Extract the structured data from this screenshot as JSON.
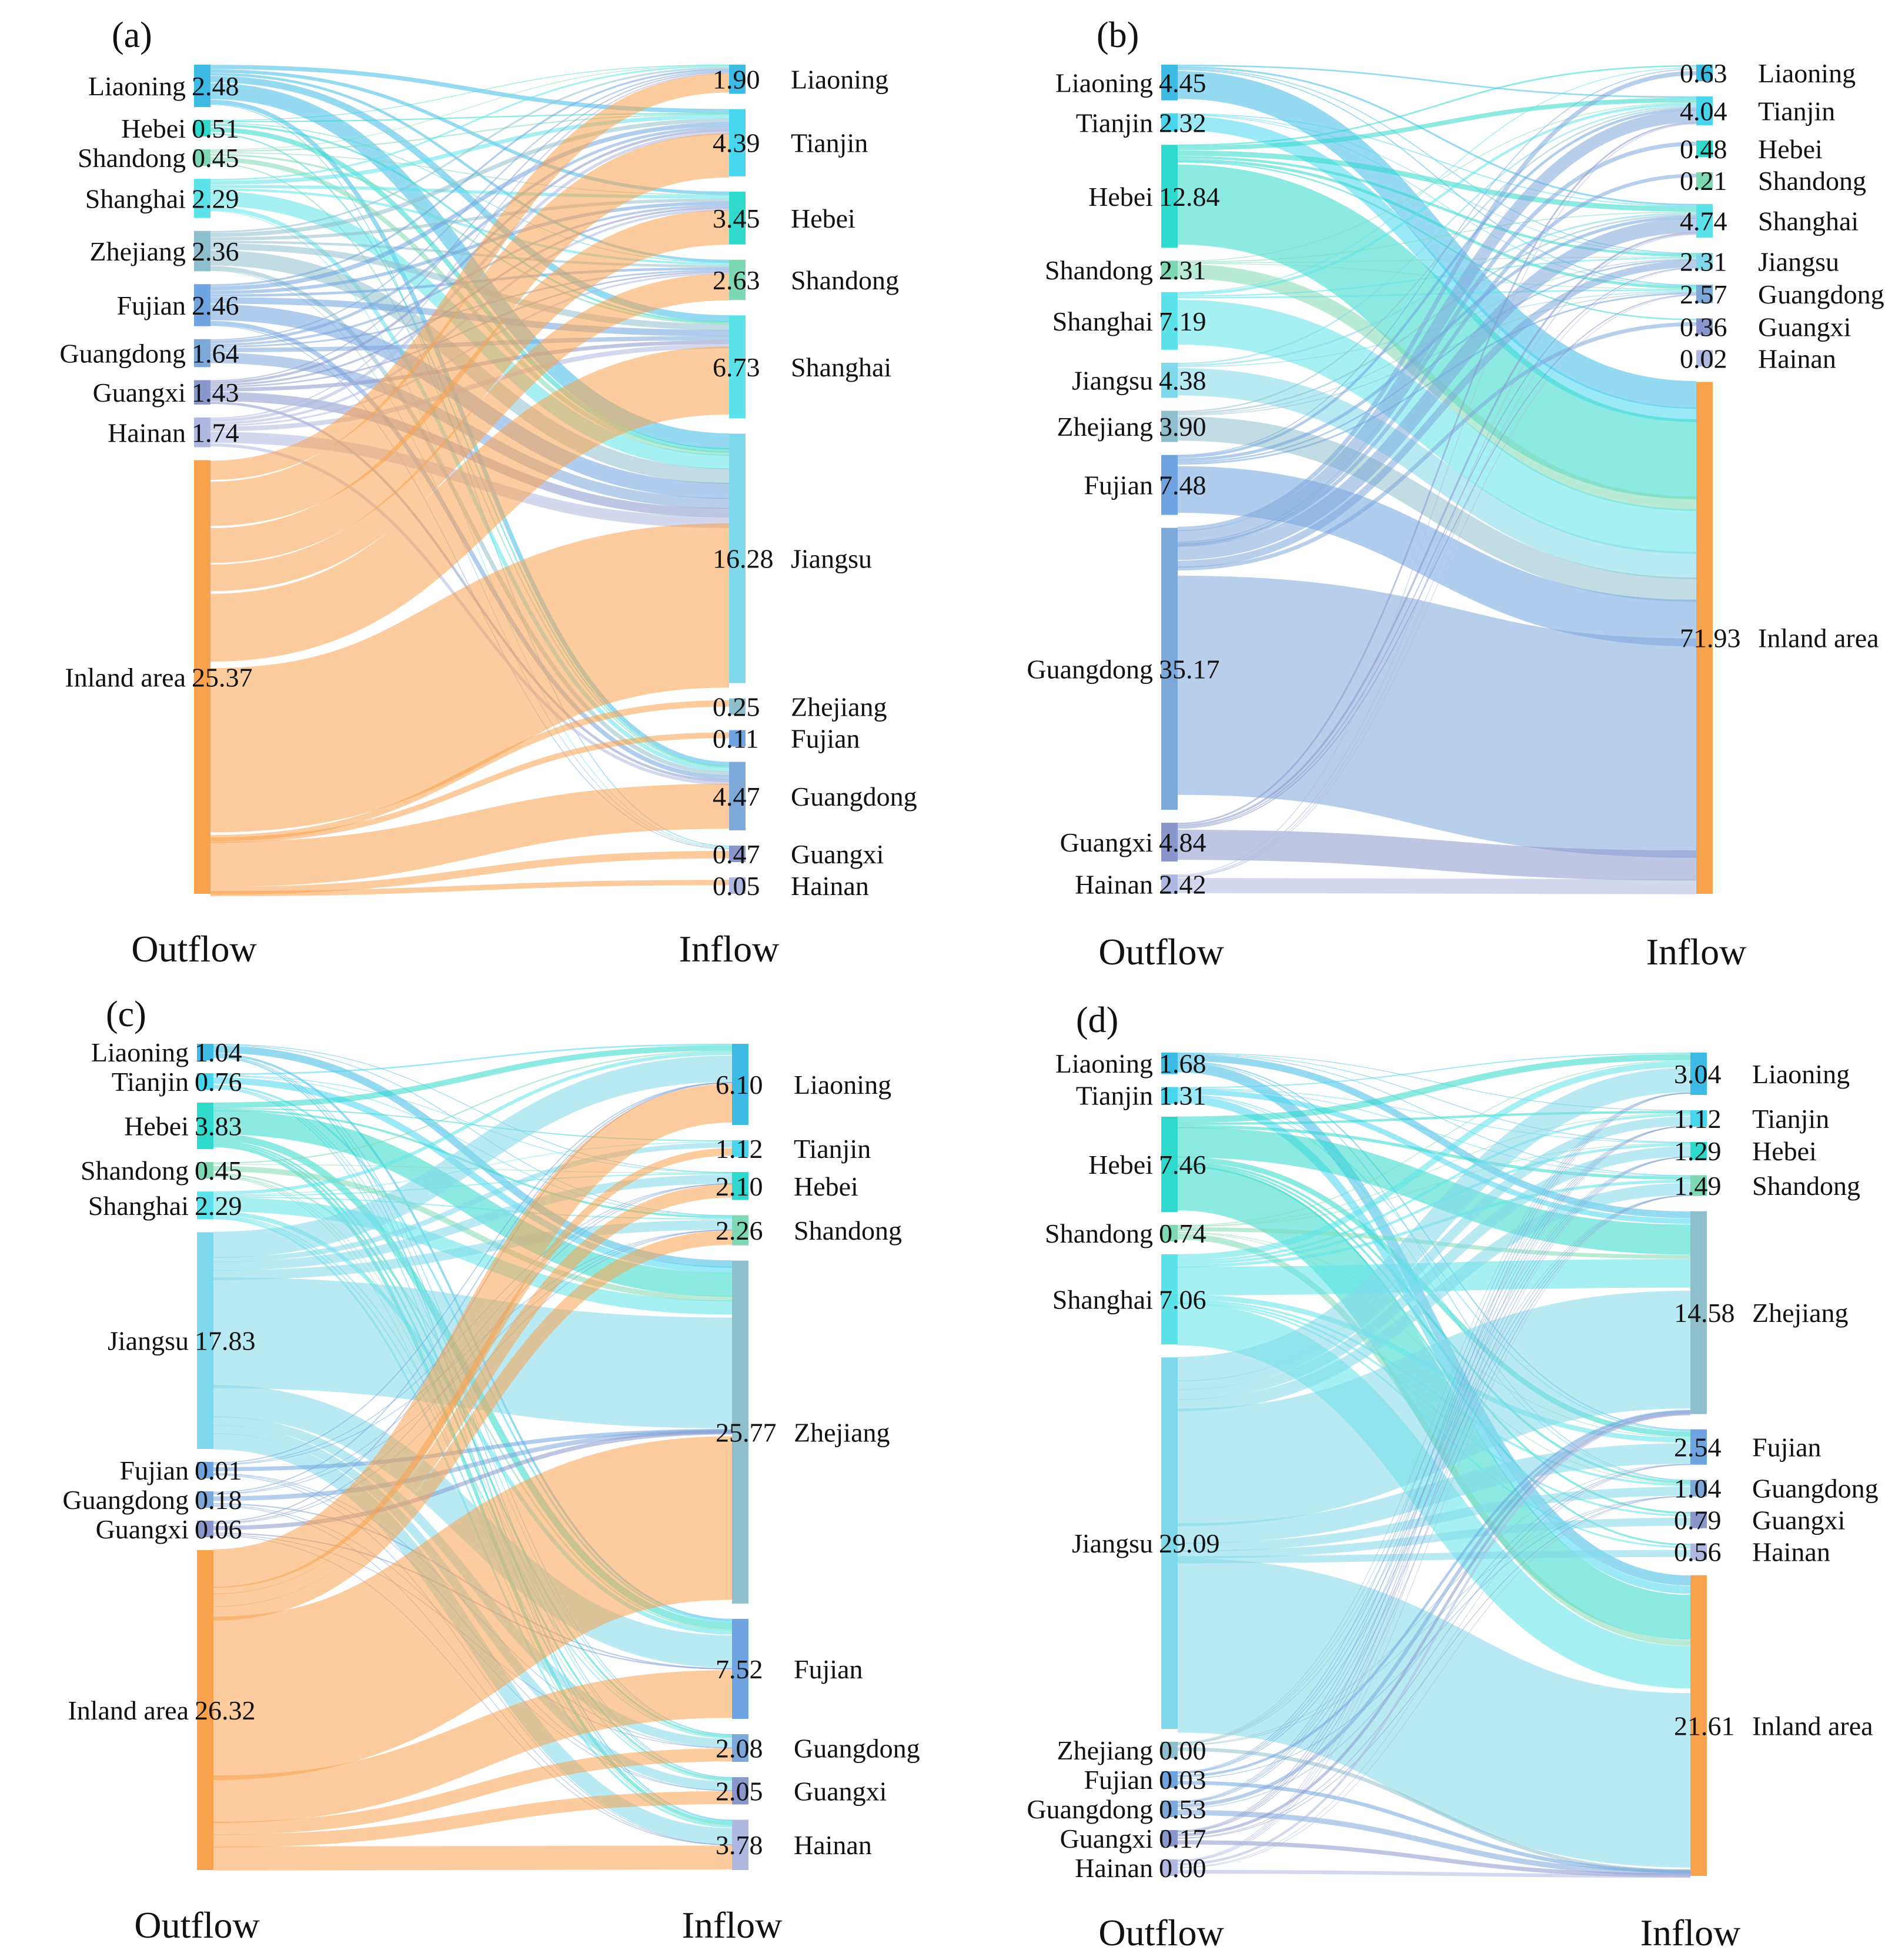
{
  "axis_labels": {
    "outflow": "Outflow",
    "inflow": "Inflow"
  },
  "colors": {
    "Liaoning": "#3EBBE5",
    "Tianjin": "#48D6EE",
    "Hebei": "#2FD9CC",
    "Shandong": "#7FD8B4",
    "Shanghai": "#5CE3EA",
    "Jiangsu": "#7FD9EA",
    "Zhejiang": "#8FBFCC",
    "Fujian": "#6FA4E0",
    "Guangdong": "#7DA8DA",
    "Guangxi": "#8A97CC",
    "Hainan": "#B0B8E2",
    "Inland area": "#F9A24E"
  },
  "chart_data": [
    {
      "type": "sankey",
      "panel_label": "(a)",
      "outflow": [
        {
          "name": "Liaoning",
          "value_text": "2.48"
        },
        {
          "name": "Hebei",
          "value_text": "0.51"
        },
        {
          "name": "Shandong",
          "value_text": "0.45"
        },
        {
          "name": "Shanghai",
          "value_text": "2.29"
        },
        {
          "name": "Zhejiang",
          "value_text": "2.36"
        },
        {
          "name": "Fujian",
          "value_text": "2.46"
        },
        {
          "name": "Guangdong",
          "value_text": "1.64"
        },
        {
          "name": "Guangxi",
          "value_text": "1.43"
        },
        {
          "name": "Hainan",
          "value_text": "1.74"
        },
        {
          "name": "Inland area",
          "value_text": "25.37"
        }
      ],
      "inflow": [
        {
          "name": "Liaoning",
          "value_text": "1.90"
        },
        {
          "name": "Tianjin",
          "value_text": "4.39"
        },
        {
          "name": "Hebei",
          "value_text": "3.45"
        },
        {
          "name": "Shandong",
          "value_text": "2.63"
        },
        {
          "name": "Shanghai",
          "value_text": "6.73"
        },
        {
          "name": "Jiangsu",
          "value_text": "16.28"
        },
        {
          "name": "Zhejiang",
          "value_text": "0.25"
        },
        {
          "name": "Fujian",
          "value_text": "0.11"
        },
        {
          "name": "Guangdong",
          "value_text": "4.47"
        },
        {
          "name": "Guangxi",
          "value_text": "0.47"
        },
        {
          "name": "Hainan",
          "value_text": "0.05"
        }
      ]
    },
    {
      "type": "sankey",
      "panel_label": "(b)",
      "outflow": [
        {
          "name": "Liaoning",
          "value_text": "4.45"
        },
        {
          "name": "Tianjin",
          "value_text": "2.32"
        },
        {
          "name": "Hebei",
          "value_text": "12.84"
        },
        {
          "name": "Shandong",
          "value_text": "2.31"
        },
        {
          "name": "Shanghai",
          "value_text": "7.19"
        },
        {
          "name": "Jiangsu",
          "value_text": "4.38"
        },
        {
          "name": "Zhejiang",
          "value_text": "3.90"
        },
        {
          "name": "Fujian",
          "value_text": "7.48"
        },
        {
          "name": "Guangdong",
          "value_text": "35.17"
        },
        {
          "name": "Guangxi",
          "value_text": "4.84"
        },
        {
          "name": "Hainan",
          "value_text": "2.42"
        }
      ],
      "inflow": [
        {
          "name": "Liaoning",
          "value_text": "0.63"
        },
        {
          "name": "Tianjin",
          "value_text": "4.04"
        },
        {
          "name": "Hebei",
          "value_text": "0.48"
        },
        {
          "name": "Shandong",
          "value_text": "0.21"
        },
        {
          "name": "Shanghai",
          "value_text": "4.74"
        },
        {
          "name": "Jiangsu",
          "value_text": "2.31"
        },
        {
          "name": "Guangdong",
          "value_text": "2.57"
        },
        {
          "name": "Guangxi",
          "value_text": "0.36"
        },
        {
          "name": "Hainan",
          "value_text": "0.02"
        },
        {
          "name": "Inland area",
          "value_text": "71.93"
        }
      ]
    },
    {
      "type": "sankey",
      "panel_label": "(c)",
      "outflow": [
        {
          "name": "Liaoning",
          "value_text": "1.04"
        },
        {
          "name": "Tianjin",
          "value_text": "0.76"
        },
        {
          "name": "Hebei",
          "value_text": "3.83"
        },
        {
          "name": "Shandong",
          "value_text": "0.45"
        },
        {
          "name": "Shanghai",
          "value_text": "2.29"
        },
        {
          "name": "Jiangsu",
          "value_text": "17.83"
        },
        {
          "name": "Fujian",
          "value_text": "0.01"
        },
        {
          "name": "Guangdong",
          "value_text": "0.18"
        },
        {
          "name": "Guangxi",
          "value_text": "0.06"
        },
        {
          "name": "Inland area",
          "value_text": "26.32"
        }
      ],
      "inflow": [
        {
          "name": "Liaoning",
          "value_text": "6.10"
        },
        {
          "name": "Tianjin",
          "value_text": "1.12"
        },
        {
          "name": "Hebei",
          "value_text": "2.10"
        },
        {
          "name": "Shandong",
          "value_text": "2.26"
        },
        {
          "name": "Zhejiang",
          "value_text": "25.77"
        },
        {
          "name": "Fujian",
          "value_text": "7.52"
        },
        {
          "name": "Guangdong",
          "value_text": "2.08"
        },
        {
          "name": "Guangxi",
          "value_text": "2.05"
        },
        {
          "name": "Hainan",
          "value_text": "3.78"
        }
      ]
    },
    {
      "type": "sankey",
      "panel_label": "(d)",
      "outflow": [
        {
          "name": "Liaoning",
          "value_text": "1.68"
        },
        {
          "name": "Tianjin",
          "value_text": "1.31"
        },
        {
          "name": "Hebei",
          "value_text": "7.46"
        },
        {
          "name": "Shandong",
          "value_text": "0.74"
        },
        {
          "name": "Shanghai",
          "value_text": "7.06"
        },
        {
          "name": "Jiangsu",
          "value_text": "29.09"
        },
        {
          "name": "Zhejiang",
          "value_text": "0.00"
        },
        {
          "name": "Fujian",
          "value_text": "0.03"
        },
        {
          "name": "Guangdong",
          "value_text": "0.53"
        },
        {
          "name": "Guangxi",
          "value_text": "0.17"
        },
        {
          "name": "Hainan",
          "value_text": "0.00"
        }
      ],
      "inflow": [
        {
          "name": "Liaoning",
          "value_text": "3.04"
        },
        {
          "name": "Tianjin",
          "value_text": "1.12"
        },
        {
          "name": "Hebei",
          "value_text": "1.29"
        },
        {
          "name": "Shandong",
          "value_text": "1.49"
        },
        {
          "name": "Zhejiang",
          "value_text": "14.58"
        },
        {
          "name": "Fujian",
          "value_text": "2.54"
        },
        {
          "name": "Guangdong",
          "value_text": "1.04"
        },
        {
          "name": "Guangxi",
          "value_text": "0.79"
        },
        {
          "name": "Hainan",
          "value_text": "0.56"
        },
        {
          "name": "Inland area",
          "value_text": "21.61"
        }
      ]
    }
  ]
}
